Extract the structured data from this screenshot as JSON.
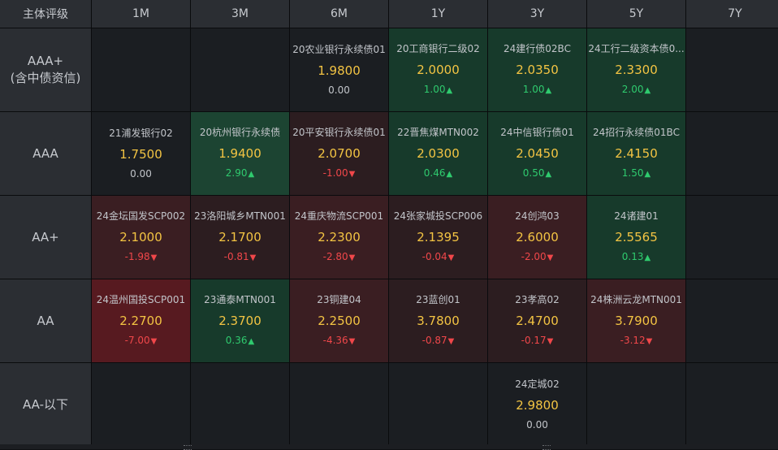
{
  "header": {
    "corner": "主体评级",
    "tenors": [
      "1M",
      "3M",
      "6M",
      "1Y",
      "3Y",
      "5Y",
      "7Y"
    ]
  },
  "rows": [
    {
      "label_lines": [
        "AAA+",
        "(含中债资信)"
      ],
      "cells": [
        null,
        null,
        {
          "name": "20农业银行永续债01",
          "yield": "1.9800",
          "change": "0.00",
          "dir": "flat",
          "shade": "neutral"
        },
        {
          "name": "20工商银行二级02",
          "yield": "2.0000",
          "change": "1.00",
          "dir": "up",
          "shade": "up1"
        },
        {
          "name": "24建行债02BC",
          "yield": "2.0350",
          "change": "1.00",
          "dir": "up",
          "shade": "up1"
        },
        {
          "name": "24工行二级资本债0...",
          "yield": "2.3300",
          "change": "2.00",
          "dir": "up",
          "shade": "up1"
        },
        null
      ]
    },
    {
      "label_lines": [
        "AAA"
      ],
      "cells": [
        {
          "name": "21浦发银行02",
          "yield": "1.7500",
          "change": "0.00",
          "dir": "flat",
          "shade": "neutral"
        },
        {
          "name": "20杭州银行永续债",
          "yield": "1.9400",
          "change": "2.90",
          "dir": "up",
          "shade": "up2"
        },
        {
          "name": "20平安银行永续债01",
          "yield": "2.0700",
          "change": "-1.00",
          "dir": "down",
          "shade": "down1"
        },
        {
          "name": "22晋焦煤MTN002",
          "yield": "2.0300",
          "change": "0.46",
          "dir": "up",
          "shade": "up1"
        },
        {
          "name": "24中信银行债01",
          "yield": "2.0450",
          "change": "0.50",
          "dir": "up",
          "shade": "up1"
        },
        {
          "name": "24招行永续债01BC",
          "yield": "2.4150",
          "change": "1.50",
          "dir": "up",
          "shade": "up1"
        },
        null
      ]
    },
    {
      "label_lines": [
        "AA+"
      ],
      "cells": [
        {
          "name": "24金坛国发SCP002",
          "yield": "2.1000",
          "change": "-1.98",
          "dir": "down",
          "shade": "down2"
        },
        {
          "name": "23洛阳城乡MTN001",
          "yield": "2.1700",
          "change": "-0.81",
          "dir": "down",
          "shade": "down1"
        },
        {
          "name": "24重庆物流SCP001",
          "yield": "2.2300",
          "change": "-2.80",
          "dir": "down",
          "shade": "down2"
        },
        {
          "name": "24张家城投SCP006",
          "yield": "2.1395",
          "change": "-0.04",
          "dir": "down",
          "shade": "down1"
        },
        {
          "name": "24创鸿03",
          "yield": "2.6000",
          "change": "-2.00",
          "dir": "down",
          "shade": "down2"
        },
        {
          "name": "24诸建01",
          "yield": "2.5565",
          "change": "0.13",
          "dir": "up",
          "shade": "up1"
        },
        null
      ]
    },
    {
      "label_lines": [
        "AA"
      ],
      "cells": [
        {
          "name": "24温州国投SCP001",
          "yield": "2.2700",
          "change": "-7.00",
          "dir": "down",
          "shade": "down3"
        },
        {
          "name": "23通泰MTN001",
          "yield": "2.3700",
          "change": "0.36",
          "dir": "up",
          "shade": "up1"
        },
        {
          "name": "23铜建04",
          "yield": "2.2500",
          "change": "-4.36",
          "dir": "down",
          "shade": "down2"
        },
        {
          "name": "23蓝创01",
          "yield": "3.7800",
          "change": "-0.87",
          "dir": "down",
          "shade": "down1"
        },
        {
          "name": "23孝高02",
          "yield": "2.4700",
          "change": "-0.17",
          "dir": "down",
          "shade": "down1"
        },
        {
          "name": "24株洲云龙MTN001",
          "yield": "3.7900",
          "change": "-3.12",
          "dir": "down",
          "shade": "down2"
        },
        null
      ]
    },
    {
      "label_lines": [
        "AA-以下"
      ],
      "cells": [
        null,
        null,
        null,
        null,
        {
          "name": "24定城02",
          "yield": "2.9800",
          "change": "0.00",
          "dir": "flat",
          "shade": "neutral"
        },
        null,
        null
      ]
    }
  ],
  "icons": {
    "up": "▲",
    "down": "▼"
  }
}
